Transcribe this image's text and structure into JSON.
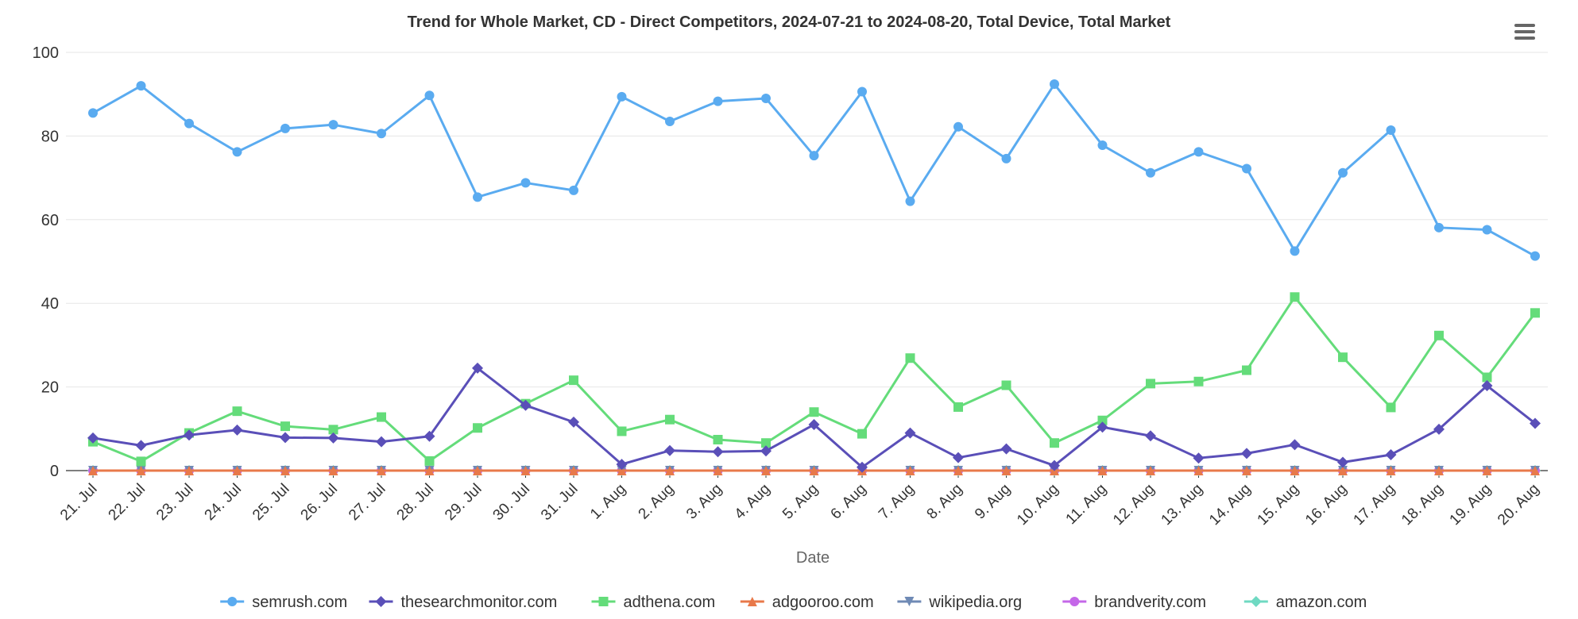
{
  "chart_data": {
    "type": "line",
    "title": "Trend for Whole Market, CD - Direct Competitors, 2024-07-21 to 2024-08-20, Total Device, Total Market",
    "xlabel": "Date",
    "ylabel": "",
    "ylim": [
      0,
      100
    ],
    "yticks": [
      "0",
      "20",
      "40",
      "60",
      "80",
      "100"
    ],
    "grid": true,
    "legend_position": "bottom",
    "categories": [
      "21. Jul",
      "22. Jul",
      "23. Jul",
      "24. Jul",
      "25. Jul",
      "26. Jul",
      "27. Jul",
      "28. Jul",
      "29. Jul",
      "30. Jul",
      "31. Jul",
      "1. Aug",
      "2. Aug",
      "3. Aug",
      "4. Aug",
      "5. Aug",
      "6. Aug",
      "7. Aug",
      "8. Aug",
      "9. Aug",
      "10. Aug",
      "11. Aug",
      "12. Aug",
      "13. Aug",
      "14. Aug",
      "15. Aug",
      "16. Aug",
      "17. Aug",
      "18. Aug",
      "19. Aug",
      "20. Aug"
    ],
    "series": [
      {
        "name": "semrush.com",
        "color": "#5aabf0",
        "marker": "circle",
        "values": [
          85.5,
          92,
          83,
          76.2,
          81.8,
          82.7,
          80.6,
          89.7,
          65.4,
          68.8,
          67,
          89.4,
          83.5,
          88.3,
          89,
          75.3,
          90.6,
          64.4,
          82.2,
          74.6,
          92.4,
          77.8,
          71.2,
          76.2,
          72.2,
          52.5,
          71.2,
          81.4,
          58.1,
          57.6,
          51.3
        ]
      },
      {
        "name": "thesearchmonitor.com",
        "color": "#5a4fb8",
        "marker": "diamond",
        "values": [
          7.8,
          6,
          8.5,
          9.7,
          7.9,
          7.8,
          6.9,
          8.2,
          24.5,
          15.6,
          11.6,
          1.5,
          4.8,
          4.5,
          4.7,
          11,
          0.8,
          9,
          3.1,
          5.2,
          1.2,
          10.4,
          8.3,
          3,
          4.1,
          6.2,
          2,
          3.8,
          9.9,
          20.3,
          11.3
        ]
      },
      {
        "name": "adthena.com",
        "color": "#64dc7a",
        "marker": "square",
        "values": [
          6.9,
          2.2,
          9,
          14.2,
          10.6,
          9.8,
          12.8,
          2.3,
          10.2,
          16,
          21.6,
          9.4,
          12.2,
          7.4,
          6.6,
          14,
          8.8,
          26.9,
          15.2,
          20.4,
          6.6,
          12,
          20.8,
          21.3,
          24,
          41.5,
          27.1,
          15.1,
          32.3,
          22.3,
          37.7
        ]
      },
      {
        "name": "adgooroo.com",
        "color": "#e8794a",
        "marker": "triangle",
        "values": [
          0,
          0,
          0,
          0,
          0,
          0,
          0,
          0,
          0,
          0,
          0,
          0,
          0,
          0,
          0,
          0,
          0,
          0,
          0,
          0,
          0,
          0,
          0,
          0,
          0,
          0,
          0,
          0,
          0,
          0,
          0
        ]
      },
      {
        "name": "wikipedia.org",
        "color": "#6f8ab5",
        "marker": "triangle-down",
        "values": [
          0,
          0,
          0,
          0,
          0,
          0,
          0,
          0,
          0,
          0,
          0,
          0,
          0,
          0,
          0,
          0,
          0,
          0,
          0,
          0,
          0,
          0,
          0,
          0,
          0,
          0,
          0,
          0,
          0,
          0,
          0
        ]
      },
      {
        "name": "brandverity.com",
        "color": "#c467e8",
        "marker": "circle",
        "values": [
          0,
          0,
          0,
          0,
          0,
          0,
          0,
          0,
          0,
          0,
          0,
          0,
          0,
          0,
          0,
          0,
          0,
          0,
          0,
          0,
          0,
          0,
          0,
          0,
          0,
          0,
          0,
          0,
          0,
          0,
          0
        ]
      },
      {
        "name": "amazon.com",
        "color": "#6fd9c2",
        "marker": "diamond",
        "values": [
          0,
          0,
          0,
          0,
          0,
          0,
          0,
          0,
          0,
          0,
          0,
          0,
          0,
          0,
          0,
          0,
          0,
          0,
          0,
          0,
          0,
          0,
          0,
          0,
          0,
          0,
          0,
          0,
          0,
          0,
          0
        ]
      }
    ]
  },
  "menu": {
    "icon": "hamburger-menu-icon"
  }
}
